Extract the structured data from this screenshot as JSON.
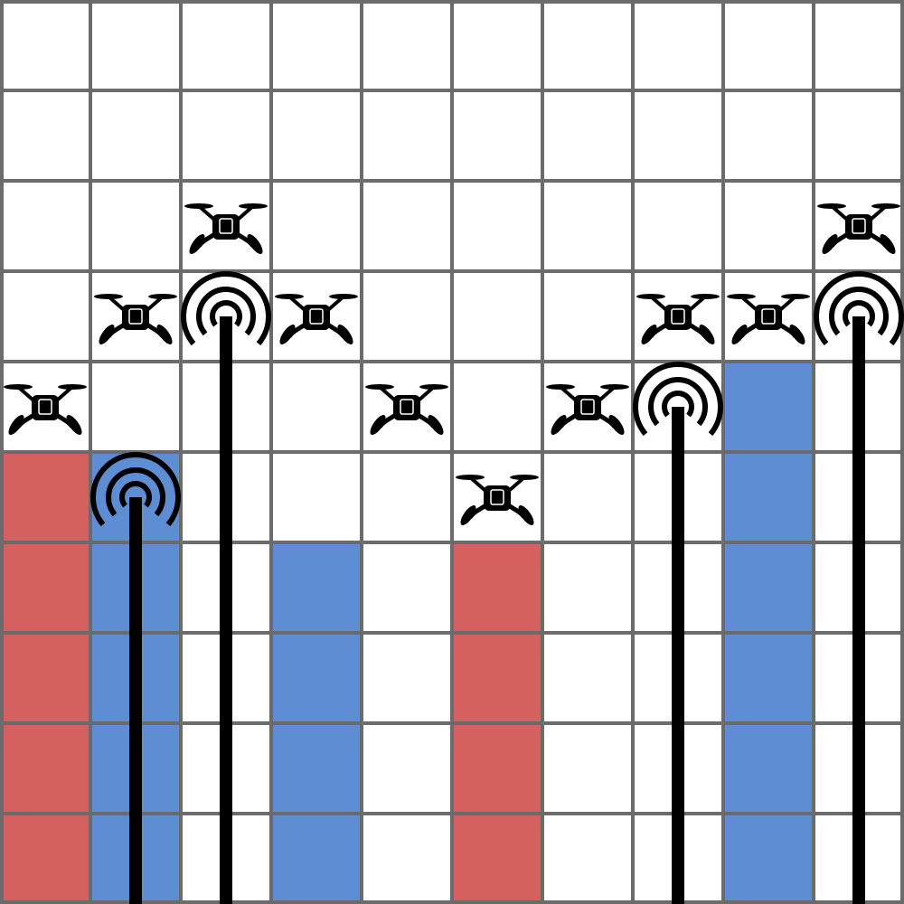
{
  "game": {
    "grid": {
      "columns": 10,
      "rows": 10
    },
    "colors": {
      "background": "#ffffff",
      "grid_line": "#6b6b6b",
      "red_building": "#d46060",
      "blue_building": "#5f8dd3",
      "tower": "#000000",
      "drone": "#000000"
    },
    "columns": [
      {
        "col": 0,
        "building": {
          "color": "red",
          "height_cells": 5
        },
        "tower": null,
        "drone_row": 4
      },
      {
        "col": 1,
        "building": {
          "color": "blue",
          "height_cells": 5
        },
        "tower": {
          "height_cells": 4.5
        },
        "drone_row": 3
      },
      {
        "col": 2,
        "building": null,
        "tower": {
          "height_cells": 6.5
        },
        "drone_row": 2
      },
      {
        "col": 3,
        "building": {
          "color": "blue",
          "height_cells": 4
        },
        "tower": null,
        "drone_row": 3
      },
      {
        "col": 4,
        "building": null,
        "tower": null,
        "drone_row": 4
      },
      {
        "col": 5,
        "building": {
          "color": "red",
          "height_cells": 4
        },
        "tower": null,
        "drone_row": 5
      },
      {
        "col": 6,
        "building": null,
        "tower": null,
        "drone_row": 4
      },
      {
        "col": 7,
        "building": null,
        "tower": {
          "height_cells": 5.5
        },
        "drone_row": 3
      },
      {
        "col": 8,
        "building": {
          "color": "blue",
          "height_cells": 6
        },
        "tower": null,
        "drone_row": 3
      },
      {
        "col": 9,
        "building": null,
        "tower": {
          "height_cells": 6.5
        },
        "drone_row": 2
      }
    ],
    "icons": {
      "drone": "drone-icon",
      "signal": "signal-tower-icon"
    }
  }
}
